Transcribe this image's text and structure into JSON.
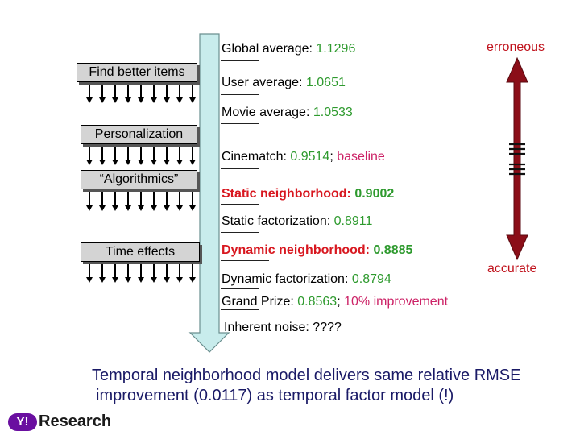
{
  "boxes": {
    "b1": "Find better items",
    "b2": "Personalization",
    "b3": "“Algorithmics”",
    "b4": "Time effects"
  },
  "results": {
    "global": {
      "label": "Global average: ",
      "value": "1.1296"
    },
    "user": {
      "label": "User average: ",
      "value": "1.0651"
    },
    "movie": {
      "label": "Movie average: ",
      "value": "1.0533"
    },
    "cinematch": {
      "label": "Cinematch: ",
      "value": "0.9514",
      "sep": "; ",
      "note": "baseline"
    },
    "static_nb": {
      "label_a": "Static",
      "label_b": " neighborhood: ",
      "value": "0.9002"
    },
    "static_fac": {
      "label": "Static factorization: ",
      "value": "0.8911"
    },
    "dynamic_nb": {
      "label_a": "Dynamic",
      "label_b": " neighborhood: ",
      "value": "0.8885"
    },
    "dynamic_fac": {
      "label": "Dynamic factorization: ",
      "value": "0.8794"
    },
    "grand": {
      "label": "Grand Prize: ",
      "value": "0.8563",
      "sep": "; ",
      "note": "10% improvement"
    },
    "noise": {
      "label": "Inherent noise: ",
      "value": "????"
    }
  },
  "scale": {
    "top": "erroneous",
    "bottom": "accurate"
  },
  "footer": {
    "line1": "Temporal neighborhood model delivers same relative RMSE",
    "line2": "improvement (0.0117) as temporal factor model (!)"
  },
  "logo": {
    "brand": "Y!",
    "text": "Research"
  },
  "colors": {
    "value": "#2e9a2e",
    "note": "#cc2266",
    "accent": "#d81820",
    "arrow": "#8b0e18",
    "footer": "#1a1a66"
  }
}
